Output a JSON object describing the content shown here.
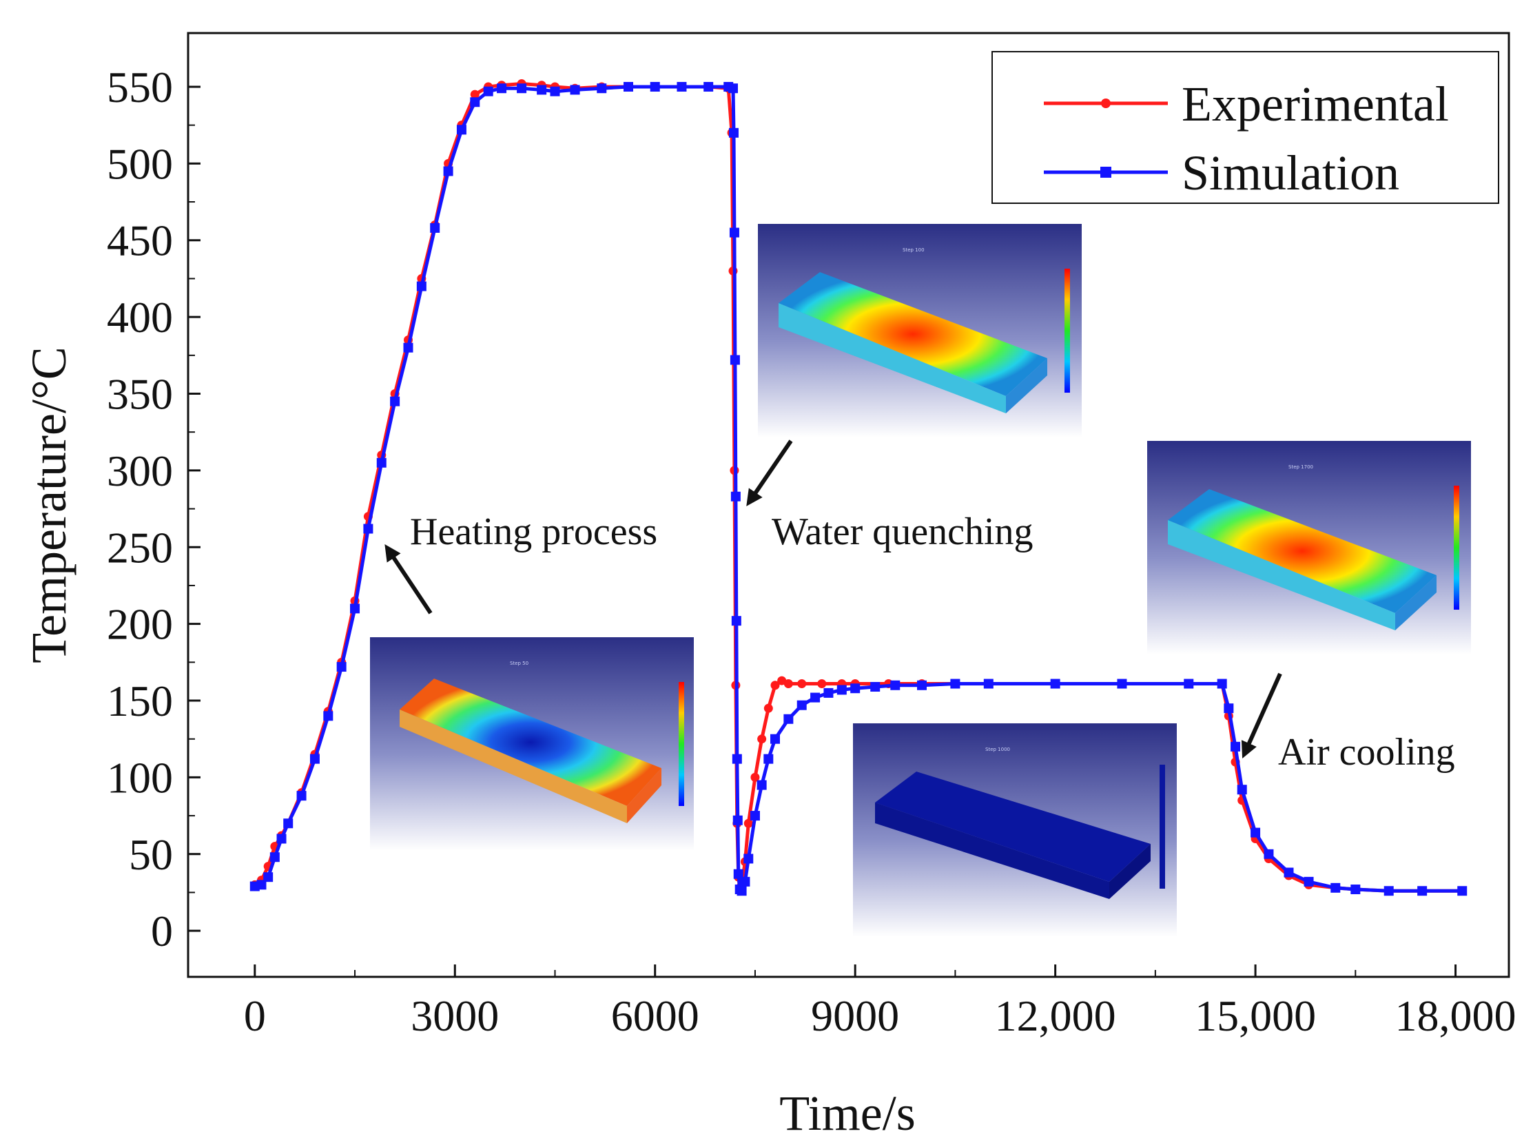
{
  "chart_data": {
    "type": "line",
    "xlabel": "Time/s",
    "ylabel": "Temperature/°C",
    "xlim": [
      -1000,
      18800
    ],
    "ylim": [
      -30,
      585
    ],
    "x_ticks": [
      0,
      3000,
      6000,
      9000,
      12000,
      15000,
      18000
    ],
    "x_tick_labels": [
      "0",
      "3000",
      "6000",
      "9000",
      "12,000",
      "15,000",
      "18,000"
    ],
    "y_ticks": [
      0,
      50,
      100,
      150,
      200,
      250,
      300,
      350,
      400,
      450,
      500,
      550
    ],
    "y_tick_labels": [
      "0",
      "50",
      "100",
      "150",
      "200",
      "250",
      "300",
      "350",
      "400",
      "450",
      "500",
      "550"
    ],
    "grid": false,
    "legend_position": "top-right",
    "series": [
      {
        "name": "Experimental",
        "color": "#ff1a1a",
        "marker": "circle",
        "x": [
          0,
          100,
          200,
          300,
          400,
          500,
          700,
          900,
          1100,
          1300,
          1500,
          1700,
          1900,
          2100,
          2300,
          2500,
          2700,
          2900,
          3100,
          3300,
          3500,
          3700,
          4000,
          4300,
          4500,
          4800,
          5200,
          5600,
          6000,
          6400,
          6800,
          7100,
          7150,
          7170,
          7190,
          7210,
          7230,
          7250,
          7270,
          7300,
          7350,
          7400,
          7500,
          7600,
          7700,
          7800,
          7900,
          8000,
          8200,
          8500,
          8800,
          9000,
          9500,
          10000,
          11000,
          12000,
          13000,
          14000,
          14500,
          14600,
          14700,
          14800,
          15000,
          15200,
          15500,
          15800,
          16200,
          16500,
          17000,
          17500,
          18100
        ],
        "y": [
          30,
          33,
          42,
          55,
          62,
          70,
          90,
          115,
          143,
          175,
          215,
          270,
          310,
          350,
          385,
          425,
          460,
          500,
          525,
          545,
          550,
          551,
          552,
          551,
          550,
          549,
          550,
          550,
          550,
          550,
          550,
          549,
          520,
          430,
          300,
          160,
          70,
          35,
          28,
          30,
          45,
          70,
          100,
          125,
          145,
          160,
          163,
          161,
          161,
          161,
          161,
          161,
          161,
          161,
          161,
          161,
          161,
          161,
          161,
          140,
          110,
          85,
          60,
          47,
          36,
          30,
          28,
          27,
          26,
          26,
          26
        ]
      },
      {
        "name": "Simulation",
        "color": "#1414ff",
        "marker": "square",
        "x": [
          0,
          100,
          200,
          300,
          400,
          500,
          700,
          900,
          1100,
          1300,
          1500,
          1700,
          1900,
          2100,
          2300,
          2500,
          2700,
          2900,
          3100,
          3300,
          3500,
          3700,
          4000,
          4300,
          4500,
          4800,
          5200,
          5600,
          6000,
          6400,
          6800,
          7100,
          7170,
          7180,
          7190,
          7200,
          7210,
          7220,
          7230,
          7240,
          7250,
          7270,
          7300,
          7350,
          7400,
          7500,
          7600,
          7700,
          7800,
          8000,
          8200,
          8400,
          8600,
          8800,
          9000,
          9300,
          9600,
          10000,
          10500,
          11000,
          12000,
          13000,
          14000,
          14500,
          14600,
          14700,
          14800,
          15000,
          15200,
          15500,
          15800,
          16200,
          16500,
          17000,
          17500,
          18100
        ],
        "y": [
          29,
          30,
          35,
          48,
          60,
          70,
          88,
          112,
          140,
          172,
          210,
          262,
          305,
          345,
          380,
          420,
          458,
          495,
          522,
          540,
          547,
          549,
          549,
          548,
          547,
          548,
          549,
          550,
          550,
          550,
          550,
          550,
          549,
          520,
          455,
          372,
          283,
          202,
          112,
          72,
          37,
          27,
          26,
          32,
          47,
          75,
          95,
          112,
          125,
          138,
          147,
          152,
          155,
          157,
          158,
          159,
          160,
          160,
          161,
          161,
          161,
          161,
          161,
          161,
          145,
          120,
          92,
          64,
          50,
          38,
          32,
          28,
          27,
          26,
          26,
          26
        ]
      }
    ]
  },
  "annotations": {
    "heating": "Heating process",
    "quenching": "Water quenching",
    "air_cooling": "Air cooling"
  }
}
